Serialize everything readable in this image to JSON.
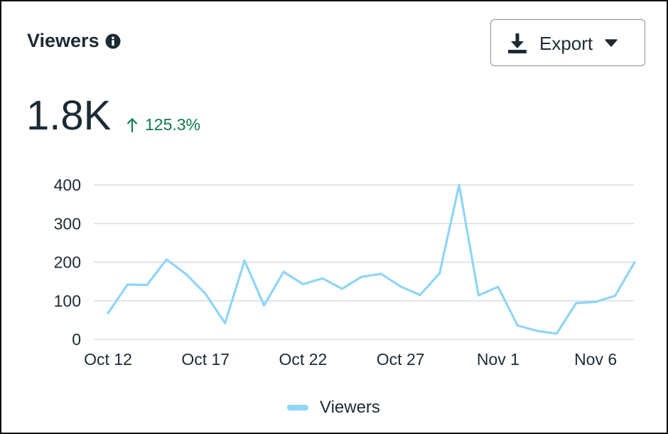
{
  "card": {
    "title": "Viewers",
    "info_icon": "info-icon",
    "export": {
      "label": "Export",
      "icon": "download-icon",
      "caret_icon": "caret-down-icon"
    },
    "total": "1.8K",
    "change": {
      "text": "125.3%",
      "direction": "up",
      "icon": "arrow-up-icon",
      "color": "#0b7b49"
    }
  },
  "colors": {
    "series": "#8fd5f7",
    "grid": "#d9dde0",
    "text": "#1c2b33"
  },
  "chart_data": {
    "type": "line",
    "title": "",
    "xlabel": "",
    "ylabel": "",
    "ylim": [
      0,
      400
    ],
    "yticks": [
      0,
      100,
      200,
      300,
      400
    ],
    "xtick_labels": [
      "Oct 12",
      "Oct 17",
      "Oct 22",
      "Oct 27",
      "Nov 1",
      "Nov 6"
    ],
    "xtick_indices": [
      0,
      5,
      10,
      15,
      20,
      25
    ],
    "x": [
      "Oct 12",
      "Oct 13",
      "Oct 14",
      "Oct 15",
      "Oct 16",
      "Oct 17",
      "Oct 18",
      "Oct 19",
      "Oct 20",
      "Oct 21",
      "Oct 22",
      "Oct 23",
      "Oct 24",
      "Oct 25",
      "Oct 26",
      "Oct 27",
      "Oct 28",
      "Oct 29",
      "Oct 30",
      "Oct 31",
      "Nov 1",
      "Nov 2",
      "Nov 3",
      "Nov 4",
      "Nov 5",
      "Nov 6",
      "Nov 7",
      "Nov 8"
    ],
    "series": [
      {
        "name": "Viewers",
        "values": [
          68,
          142,
          141,
          207,
          169,
          118,
          42,
          204,
          88,
          175,
          143,
          158,
          131,
          162,
          170,
          137,
          115,
          171,
          400,
          114,
          136,
          36,
          22,
          15,
          94,
          97,
          113,
          200
        ]
      }
    ],
    "grid": true,
    "legend_position": "bottom-center"
  }
}
